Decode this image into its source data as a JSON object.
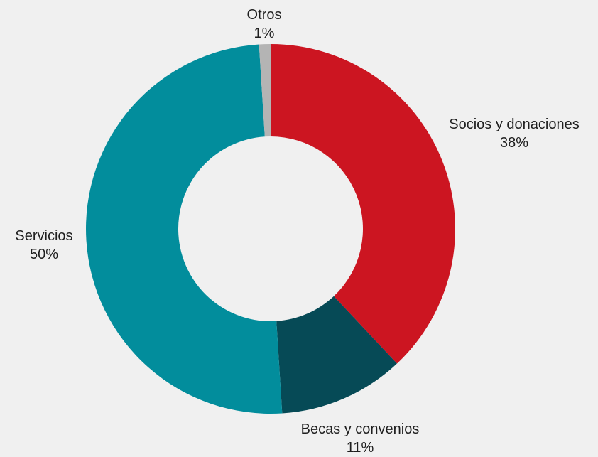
{
  "chart_data": {
    "type": "pie",
    "variant": "donut",
    "title": "",
    "legend": "none",
    "categories": [
      "Socios y donaciones",
      "Becas y convenios",
      "Servicios",
      "Otros"
    ],
    "values": [
      38,
      11,
      50,
      1
    ],
    "value_labels": [
      "38%",
      "11%",
      "50%",
      "1%"
    ],
    "colors": [
      "#cc1521",
      "#064a56",
      "#028d9c",
      "#b4b4b4"
    ]
  }
}
